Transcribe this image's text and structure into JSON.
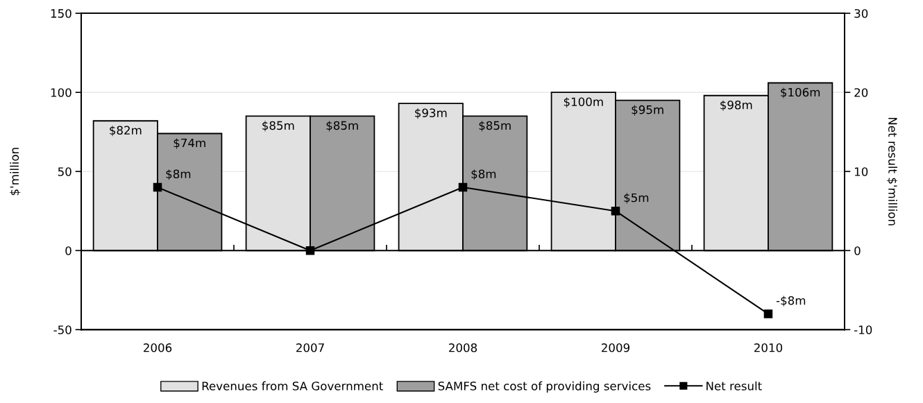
{
  "chart_data": {
    "type": "bar",
    "categories": [
      "2006",
      "2007",
      "2008",
      "2009",
      "2010"
    ],
    "ylabel": "$'million",
    "y2label": "Net result $'million",
    "ylim": [
      -50,
      150
    ],
    "yticks": [
      -50,
      0,
      50,
      100,
      150
    ],
    "y2lim": [
      -10,
      30
    ],
    "y2ticks": [
      -10,
      0,
      10,
      20,
      30
    ],
    "grid": "y",
    "legend": "bottom",
    "series": [
      {
        "name": "Revenues from SA Government",
        "color": "#e1e1e1",
        "values": [
          82,
          85,
          93,
          100,
          98
        ],
        "value_labels": [
          "$82m",
          "$85m",
          "$93m",
          "$100m",
          "$98m"
        ]
      },
      {
        "name": "SAMFS net cost of providing services",
        "color": "#9f9f9f",
        "values": [
          74,
          85,
          85,
          95,
          106
        ],
        "value_labels": [
          "$74m",
          "$85m",
          "$85m",
          "$95m",
          "$106m"
        ]
      },
      {
        "name": "Net result",
        "type": "line",
        "axis": "y2",
        "color": "#000000",
        "marker": "square",
        "values": [
          8,
          0,
          8,
          5,
          -8
        ],
        "value_labels": [
          "$8m",
          null,
          "$8m",
          "$5m",
          "-$8m"
        ]
      }
    ]
  }
}
